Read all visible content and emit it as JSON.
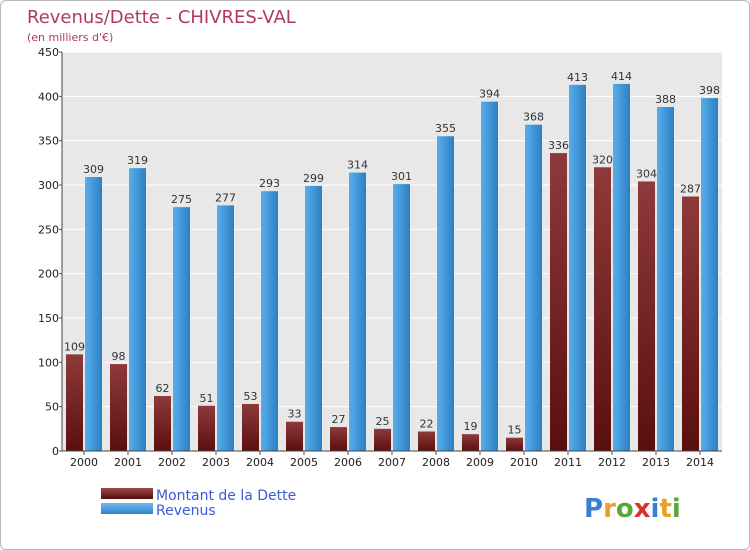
{
  "chart_data": {
    "type": "bar",
    "title": "Revenus/Dette - CHIVRES-VAL",
    "subtitle": "(en milliers d'€)",
    "categories": [
      "2000",
      "2001",
      "2002",
      "2003",
      "2004",
      "2005",
      "2006",
      "2007",
      "2008",
      "2009",
      "2010",
      "2011",
      "2012",
      "2013",
      "2014"
    ],
    "series": [
      {
        "name": "Montant de la Dette",
        "color": "#7b1e1e",
        "values": [
          109,
          98,
          62,
          51,
          53,
          33,
          27,
          25,
          22,
          19,
          15,
          336,
          320,
          304,
          287
        ]
      },
      {
        "name": "Revenus",
        "color": "#3a8fd6",
        "values": [
          309,
          319,
          275,
          277,
          293,
          299,
          314,
          301,
          355,
          394,
          368,
          413,
          414,
          388,
          398
        ]
      }
    ],
    "ylim": [
      0,
      450
    ],
    "yticks": [
      0,
      50,
      100,
      150,
      200,
      250,
      300,
      350,
      400,
      450
    ],
    "grid": true,
    "legend_position": "bottom-left"
  },
  "legend": {
    "items": [
      {
        "label": "Montant de la Dette"
      },
      {
        "label": "Revenus"
      }
    ]
  },
  "logo": {
    "text": "Proxiti"
  }
}
